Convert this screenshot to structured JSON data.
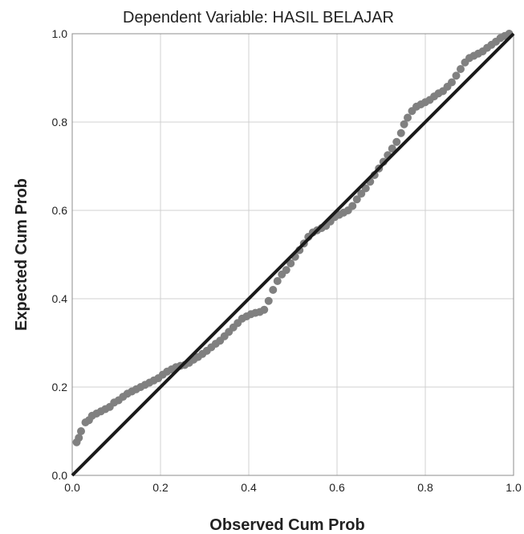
{
  "chart_data": {
    "type": "scatter",
    "title": "Dependent Variable: HASIL BELAJAR",
    "xlabel": "Observed Cum Prob",
    "ylabel": "Expected Cum Prob",
    "xlim": [
      0,
      1
    ],
    "ylim": [
      0,
      1
    ],
    "xticks": [
      "0.0",
      "0.2",
      "0.4",
      "0.6",
      "0.8",
      "1.0"
    ],
    "yticks": [
      "0.0",
      "0.2",
      "0.4",
      "0.6",
      "0.8",
      "1.0"
    ],
    "grid": true,
    "reference_line": {
      "x": [
        0,
        1
      ],
      "y": [
        0,
        1
      ]
    },
    "colors": {
      "points": "#808080",
      "line": "#1a1a1a",
      "grid": "#d0d0d0",
      "frame": "#8c8c8c"
    },
    "points": {
      "x": [
        0.01,
        0.015,
        0.02,
        0.03,
        0.038,
        0.045,
        0.055,
        0.065,
        0.075,
        0.085,
        0.095,
        0.105,
        0.115,
        0.125,
        0.135,
        0.145,
        0.155,
        0.165,
        0.175,
        0.185,
        0.195,
        0.205,
        0.215,
        0.225,
        0.235,
        0.245,
        0.255,
        0.265,
        0.275,
        0.285,
        0.295,
        0.305,
        0.315,
        0.325,
        0.335,
        0.345,
        0.355,
        0.365,
        0.375,
        0.385,
        0.395,
        0.405,
        0.415,
        0.425,
        0.435,
        0.445,
        0.455,
        0.465,
        0.475,
        0.485,
        0.495,
        0.505,
        0.515,
        0.525,
        0.535,
        0.545,
        0.555,
        0.565,
        0.575,
        0.585,
        0.595,
        0.605,
        0.615,
        0.625,
        0.635,
        0.645,
        0.655,
        0.665,
        0.675,
        0.685,
        0.695,
        0.705,
        0.715,
        0.725,
        0.735,
        0.745,
        0.752,
        0.76,
        0.77,
        0.78,
        0.79,
        0.8,
        0.81,
        0.82,
        0.83,
        0.84,
        0.85,
        0.86,
        0.87,
        0.88,
        0.89,
        0.9,
        0.91,
        0.92,
        0.93,
        0.94,
        0.95,
        0.96,
        0.97,
        0.98,
        0.99
      ],
      "y": [
        0.075,
        0.085,
        0.1,
        0.12,
        0.125,
        0.135,
        0.14,
        0.145,
        0.15,
        0.155,
        0.165,
        0.17,
        0.178,
        0.185,
        0.19,
        0.195,
        0.2,
        0.205,
        0.21,
        0.215,
        0.22,
        0.228,
        0.235,
        0.24,
        0.245,
        0.248,
        0.25,
        0.255,
        0.262,
        0.268,
        0.275,
        0.282,
        0.29,
        0.298,
        0.305,
        0.315,
        0.325,
        0.335,
        0.345,
        0.355,
        0.36,
        0.365,
        0.368,
        0.37,
        0.375,
        0.395,
        0.42,
        0.44,
        0.455,
        0.465,
        0.48,
        0.495,
        0.51,
        0.525,
        0.54,
        0.55,
        0.555,
        0.56,
        0.565,
        0.575,
        0.585,
        0.59,
        0.595,
        0.6,
        0.61,
        0.625,
        0.638,
        0.65,
        0.665,
        0.68,
        0.695,
        0.71,
        0.725,
        0.74,
        0.755,
        0.775,
        0.795,
        0.81,
        0.825,
        0.835,
        0.84,
        0.845,
        0.85,
        0.858,
        0.865,
        0.87,
        0.88,
        0.89,
        0.905,
        0.92,
        0.935,
        0.945,
        0.95,
        0.955,
        0.96,
        0.968,
        0.975,
        0.982,
        0.99,
        0.995,
        1.0
      ]
    }
  }
}
